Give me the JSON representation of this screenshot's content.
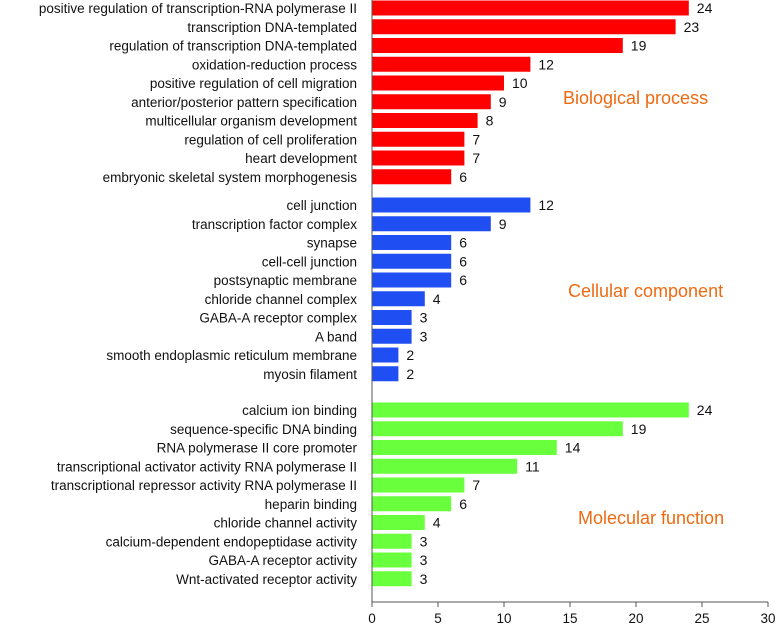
{
  "chart_data": {
    "type": "bar",
    "orientation": "horizontal",
    "xlim": [
      0,
      30
    ],
    "xticks": [
      0,
      5,
      10,
      15,
      20,
      25,
      30
    ],
    "grid": false,
    "label_color": "#ee6a12",
    "groups": [
      {
        "name": "Biological process",
        "color": "#ff0000",
        "categories": [
          "positive regulation of transcription-RNA polymerase II",
          "transcription DNA-templated",
          "regulation of transcription DNA-templated",
          "oxidation-reduction process",
          "positive regulation of cell migration",
          "anterior/posterior pattern specification",
          "multicellular organism development",
          "regulation of cell proliferation",
          "heart development",
          "embryonic skeletal system morphogenesis"
        ],
        "values": [
          24,
          23,
          19,
          12,
          10,
          9,
          8,
          7,
          7,
          6
        ]
      },
      {
        "name": "Cellular component",
        "color": "#1f4ff2",
        "categories": [
          "cell junction",
          "transcription factor complex",
          "synapse",
          "cell-cell junction",
          "postsynaptic membrane",
          "chloride channel complex",
          "GABA-A receptor complex",
          "A band",
          "smooth endoplasmic reticulum membrane",
          "myosin filament"
        ],
        "values": [
          12,
          9,
          6,
          6,
          6,
          4,
          3,
          3,
          2,
          2
        ]
      },
      {
        "name": "Molecular function",
        "color": "#6aff3c",
        "categories": [
          "calcium ion binding",
          "sequence-specific DNA binding",
          "RNA polymerase II core promoter",
          "transcriptional activator activity RNA polymerase II",
          "transcriptional repressor activity RNA polymerase II",
          "heparin binding",
          "chloride channel activity",
          "calcium-dependent endopeptidase activity",
          "GABA-A receptor activity",
          "Wnt-activated receptor activity"
        ],
        "values": [
          24,
          19,
          14,
          11,
          7,
          6,
          4,
          3,
          3,
          3
        ]
      }
    ]
  }
}
